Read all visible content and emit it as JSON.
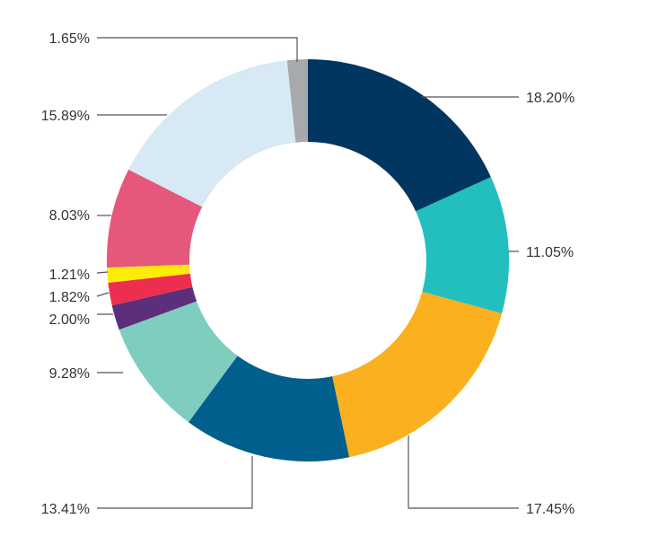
{
  "chart_data": {
    "type": "pie",
    "variant": "donut",
    "title": "",
    "legend": "none",
    "unit": "%",
    "slices": [
      {
        "label": "18.20%",
        "value": 18.2,
        "color": "#003660"
      },
      {
        "label": "11.05%",
        "value": 11.05,
        "color": "#22BFBE"
      },
      {
        "label": "17.45%",
        "value": 17.45,
        "color": "#FAB01F"
      },
      {
        "label": "13.41%",
        "value": 13.41,
        "color": "#005F8D"
      },
      {
        "label": "9.28%",
        "value": 9.28,
        "color": "#7FCDBE"
      },
      {
        "label": "2.00%",
        "value": 2.0,
        "color": "#5B2F7A"
      },
      {
        "label": "1.82%",
        "value": 1.82,
        "color": "#EE2E4E"
      },
      {
        "label": "1.21%",
        "value": 1.21,
        "color": "#FFEB0A"
      },
      {
        "label": "8.03%",
        "value": 8.03,
        "color": "#E6577C"
      },
      {
        "label": "15.89%",
        "value": 15.89,
        "color": "#D6E9F4"
      },
      {
        "label": "1.65%",
        "value": 1.65,
        "color": "#A7A9AC"
      }
    ]
  }
}
